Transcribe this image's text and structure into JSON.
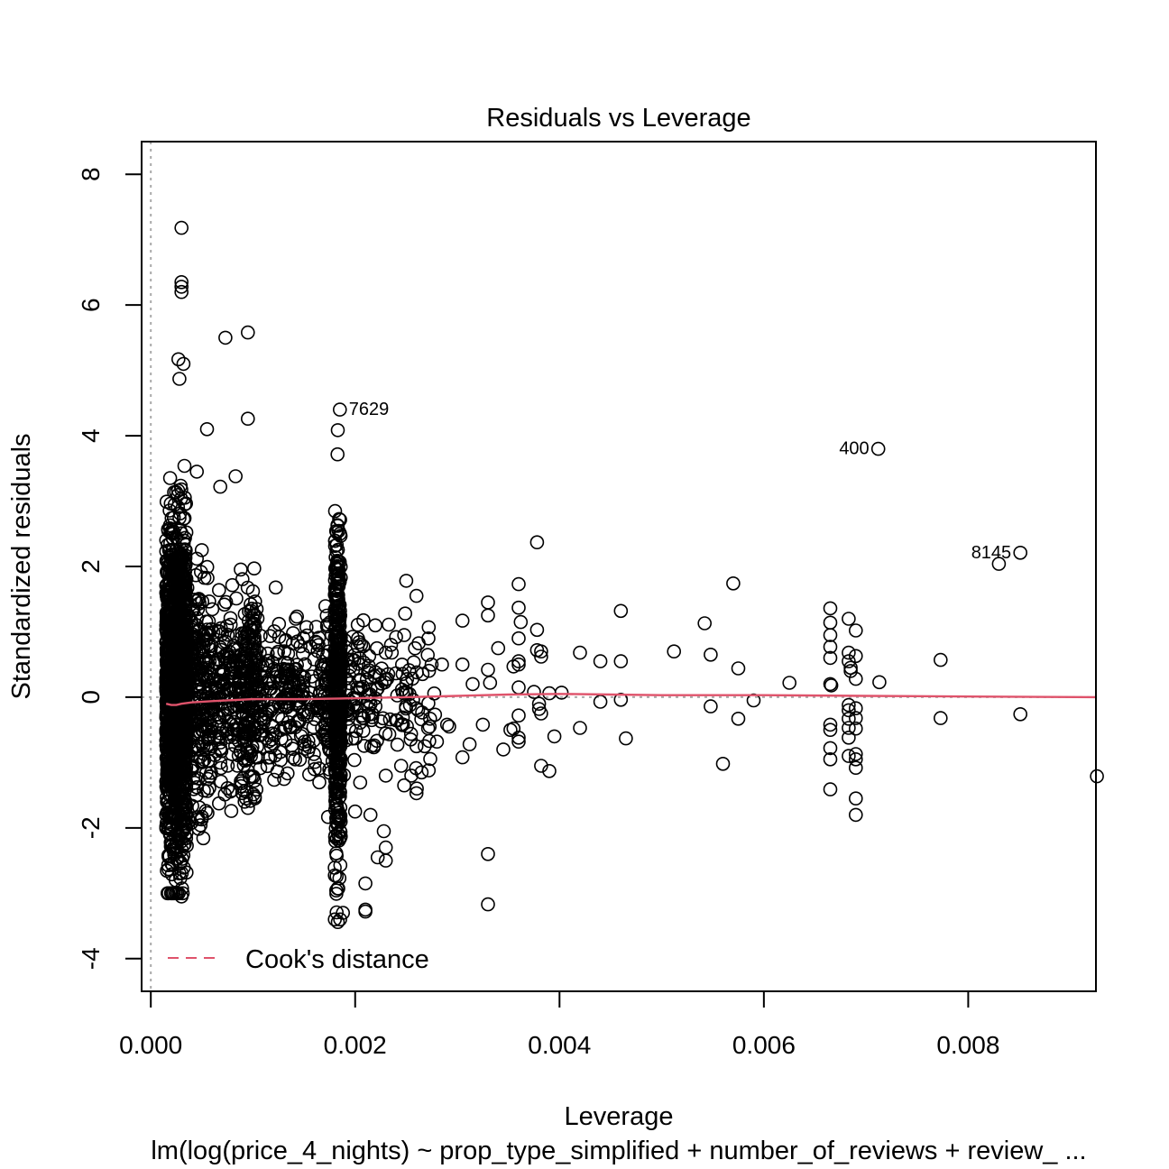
{
  "chart_data": {
    "type": "scatter",
    "title": "Residuals vs Leverage",
    "xlabel": "Leverage",
    "ylabel": "Standardized residuals",
    "subtitle": "lm(log(price_4_nights) ~ prop_type_simplified + number_of_reviews + review_ ...",
    "xlim": [
      -9e-05,
      0.00925
    ],
    "ylim": [
      -4.5,
      8.5
    ],
    "x_ticks": [
      0.0,
      0.002,
      0.004,
      0.006,
      0.008
    ],
    "x_tick_labels": [
      "0.000",
      "0.002",
      "0.004",
      "0.006",
      "0.008"
    ],
    "y_ticks": [
      -4,
      -2,
      0,
      2,
      4,
      6,
      8
    ],
    "y_tick_labels": [
      "-4",
      "-2",
      "0",
      "2",
      "4",
      "6",
      "8"
    ],
    "grid": false,
    "legend": {
      "position": "bottom-left",
      "entries": [
        {
          "label": "Cook's distance",
          "color": "#DF536B",
          "style": "dashed"
        }
      ]
    },
    "colors": {
      "points": "#000000",
      "smooth": "#DF536B",
      "reference": "#AAAAAA"
    },
    "clusters": [
      {
        "x": [
          0.00015,
          0.00035
        ],
        "ymin": -3.0,
        "ymax": 4.8,
        "n": 1400
      },
      {
        "x": [
          0.00035,
          0.0006
        ],
        "ymin": -2.3,
        "ymax": 3.4,
        "n": 260
      },
      {
        "x": [
          0.0006,
          0.0009
        ],
        "ymin": -1.8,
        "ymax": 2.6,
        "n": 170
      },
      {
        "x": [
          0.0009,
          0.00105
        ],
        "ymin": -2.0,
        "ymax": 2.6,
        "n": 170
      },
      {
        "x": [
          0.00105,
          0.0017
        ],
        "ymin": -1.7,
        "ymax": 1.9,
        "n": 230
      },
      {
        "x": [
          0.0017,
          0.00178
        ],
        "ymin": -2.0,
        "ymax": 2.3,
        "n": 60
      },
      {
        "x": [
          0.0018,
          0.00186
        ],
        "ymin": -3.4,
        "ymax": 4.4,
        "n": 420
      },
      {
        "x": [
          0.00186,
          0.0022
        ],
        "ymin": -1.5,
        "ymax": 2.0,
        "n": 90
      },
      {
        "x": [
          0.0022,
          0.0028
        ],
        "ymin": -1.5,
        "ymax": 1.8,
        "n": 70
      }
    ],
    "points": [
      [
        0.0003,
        7.18
      ],
      [
        0.0003,
        6.35
      ],
      [
        0.0003,
        6.28
      ],
      [
        0.0003,
        6.2
      ],
      [
        0.00095,
        5.58
      ],
      [
        0.00073,
        5.5
      ],
      [
        0.00027,
        5.17
      ],
      [
        0.00032,
        5.1
      ],
      [
        0.00028,
        4.87
      ],
      [
        0.00095,
        4.26
      ],
      [
        0.00055,
        4.1
      ],
      [
        0.00045,
        3.45
      ],
      [
        0.00083,
        3.38
      ],
      [
        0.00068,
        3.22
      ],
      [
        0.0003,
        -3.05
      ],
      [
        0.00185,
        4.4
      ],
      [
        0.00188,
        -3.3
      ],
      [
        0.00183,
        -3.44
      ],
      [
        0.0021,
        -3.25
      ],
      [
        0.0021,
        -3.28
      ],
      [
        0.0021,
        -2.85
      ],
      [
        0.0023,
        -2.3
      ],
      [
        0.00228,
        -2.05
      ],
      [
        0.00222,
        -2.45
      ],
      [
        0.0023,
        -2.5
      ],
      [
        0.002,
        -1.75
      ],
      [
        0.00215,
        -1.8
      ],
      [
        0.0023,
        -1.2
      ],
      [
        0.00245,
        -1.05
      ],
      [
        0.00248,
        -1.35
      ],
      [
        0.00255,
        -1.2
      ],
      [
        0.0026,
        -1.47
      ],
      [
        0.00265,
        -1.15
      ],
      [
        0.00272,
        -1.12
      ],
      [
        0.0026,
        -0.75
      ],
      [
        0.00268,
        -0.75
      ],
      [
        0.0028,
        -0.68
      ],
      [
        0.0029,
        -0.42
      ],
      [
        0.00292,
        -0.45
      ],
      [
        0.00305,
        -0.92
      ],
      [
        0.00312,
        -0.72
      ],
      [
        0.00325,
        -0.42
      ],
      [
        0.00345,
        -0.8
      ],
      [
        0.00352,
        -0.5
      ],
      [
        0.00355,
        -0.48
      ],
      [
        0.0036,
        -0.62
      ],
      [
        0.0036,
        -0.68
      ],
      [
        0.0036,
        -0.28
      ],
      [
        0.0038,
        -0.1
      ],
      [
        0.0038,
        -0.18
      ],
      [
        0.00382,
        -0.25
      ],
      [
        0.0039,
        -1.13
      ],
      [
        0.00382,
        -1.05
      ],
      [
        0.00395,
        -0.6
      ],
      [
        0.0042,
        -0.47
      ],
      [
        0.0044,
        -0.07
      ],
      [
        0.0046,
        -0.04
      ],
      [
        0.00465,
        -0.63
      ],
      [
        0.00548,
        -0.14
      ],
      [
        0.0056,
        -1.02
      ],
      [
        0.00575,
        -0.33
      ],
      [
        0.0059,
        -0.05
      ],
      [
        0.0033,
        -2.4
      ],
      [
        0.0033,
        -3.17
      ],
      [
        0.00378,
        2.37
      ],
      [
        0.0036,
        1.73
      ],
      [
        0.0036,
        1.37
      ],
      [
        0.00362,
        1.15
      ],
      [
        0.0036,
        0.9
      ],
      [
        0.00378,
        1.03
      ],
      [
        0.00378,
        0.72
      ],
      [
        0.00382,
        0.7
      ],
      [
        0.00382,
        0.62
      ],
      [
        0.00355,
        0.47
      ],
      [
        0.0036,
        0.5
      ],
      [
        0.0036,
        0.55
      ],
      [
        0.0036,
        0.15
      ],
      [
        0.00375,
        0.08
      ],
      [
        0.0039,
        0.06
      ],
      [
        0.00402,
        0.07
      ],
      [
        0.0042,
        0.68
      ],
      [
        0.0044,
        0.55
      ],
      [
        0.0046,
        0.55
      ],
      [
        0.0046,
        1.32
      ],
      [
        0.0033,
        1.45
      ],
      [
        0.0033,
        1.25
      ],
      [
        0.0034,
        0.75
      ],
      [
        0.0033,
        0.42
      ],
      [
        0.00332,
        0.22
      ],
      [
        0.00315,
        0.2
      ],
      [
        0.00305,
        1.17
      ],
      [
        0.00305,
        0.5
      ],
      [
        0.00285,
        0.5
      ],
      [
        0.00272,
        1.07
      ],
      [
        0.0026,
        1.55
      ],
      [
        0.0025,
        1.78
      ],
      [
        0.00248,
        0.95
      ],
      [
        0.0024,
        0.92
      ],
      [
        0.0023,
        0.68
      ],
      [
        0.00512,
        0.7
      ],
      [
        0.00542,
        1.13
      ],
      [
        0.00548,
        0.65
      ],
      [
        0.0057,
        1.74
      ],
      [
        0.00575,
        0.44
      ],
      [
        0.00625,
        0.22
      ],
      [
        0.00665,
        1.36
      ],
      [
        0.00665,
        1.14
      ],
      [
        0.00665,
        0.95
      ],
      [
        0.00665,
        0.77
      ],
      [
        0.00665,
        0.6
      ],
      [
        0.00665,
        0.2
      ],
      [
        0.00666,
        0.18
      ],
      [
        0.00665,
        -0.42
      ],
      [
        0.00665,
        -0.5
      ],
      [
        0.00665,
        -0.78
      ],
      [
        0.00665,
        -0.95
      ],
      [
        0.00665,
        -1.41
      ],
      [
        0.00683,
        1.2
      ],
      [
        0.00683,
        0.68
      ],
      [
        0.00683,
        0.55
      ],
      [
        0.00685,
        0.45
      ],
      [
        0.00685,
        0.4
      ],
      [
        0.00683,
        -0.12
      ],
      [
        0.00683,
        -0.2
      ],
      [
        0.00683,
        -0.33
      ],
      [
        0.00683,
        -0.47
      ],
      [
        0.00683,
        -0.62
      ],
      [
        0.00683,
        -0.9
      ],
      [
        0.0069,
        1.02
      ],
      [
        0.0069,
        0.63
      ],
      [
        0.0069,
        0.28
      ],
      [
        0.0069,
        -0.17
      ],
      [
        0.0069,
        -0.32
      ],
      [
        0.0069,
        -0.48
      ],
      [
        0.0069,
        -0.87
      ],
      [
        0.0069,
        -0.95
      ],
      [
        0.0069,
        -1.08
      ],
      [
        0.0069,
        -1.55
      ],
      [
        0.0069,
        -1.8
      ],
      [
        0.00713,
        0.23
      ],
      [
        0.00773,
        0.57
      ],
      [
        0.00773,
        -0.32
      ],
      [
        0.0083,
        2.04
      ],
      [
        0.00851,
        -0.26
      ],
      [
        0.00926,
        -1.21
      ],
      [
        0.00712,
        3.8
      ],
      [
        0.00851,
        2.21
      ]
    ],
    "labeled_points": [
      {
        "label": "7629",
        "x": 0.00185,
        "y": 4.4
      },
      {
        "label": "400",
        "x": 0.00712,
        "y": 3.8
      },
      {
        "label": "8145",
        "x": 0.00851,
        "y": 2.21
      }
    ],
    "smooth_line": {
      "x": [
        0.00015,
        0.0002,
        0.00025,
        0.0003,
        0.0004,
        0.0006,
        0.001,
        0.0015,
        0.00185,
        0.0025,
        0.003,
        0.0035,
        0.004,
        0.0045,
        0.005,
        0.006,
        0.007,
        0.008,
        0.00926
      ],
      "y": [
        -0.1,
        -0.12,
        -0.12,
        -0.1,
        -0.08,
        -0.06,
        -0.03,
        -0.03,
        -0.02,
        0.0,
        0.02,
        0.04,
        0.05,
        0.04,
        0.03,
        0.03,
        0.02,
        0.01,
        0.0
      ]
    }
  }
}
